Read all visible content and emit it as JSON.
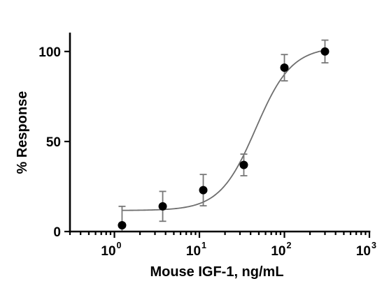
{
  "chart_data": {
    "type": "scatter",
    "xscale": "log",
    "xlabel": "Mouse IGF-1, ng/mL",
    "ylabel": "% Response",
    "xlim": [
      0.3,
      1000
    ],
    "ylim": [
      0,
      110
    ],
    "x_ticks": [
      {
        "value": 1,
        "base": "10",
        "exp": "0"
      },
      {
        "value": 10,
        "base": "10",
        "exp": "1"
      },
      {
        "value": 100,
        "base": "10",
        "exp": "2"
      },
      {
        "value": 1000,
        "base": "10",
        "exp": "3"
      }
    ],
    "y_ticks": [
      {
        "value": 0,
        "label": "0"
      },
      {
        "value": 50,
        "label": "50"
      },
      {
        "value": 100,
        "label": "100"
      }
    ],
    "grid": false,
    "points": [
      {
        "x": 1.23,
        "y": 3.5,
        "err": 10.5
      },
      {
        "x": 3.7,
        "y": 14,
        "err": 8.3
      },
      {
        "x": 11.1,
        "y": 23,
        "err": 8.7
      },
      {
        "x": 33.3,
        "y": 37,
        "err": 6
      },
      {
        "x": 100,
        "y": 91,
        "err": 7.3
      },
      {
        "x": 300,
        "y": 100,
        "err": 6.3
      }
    ],
    "fit": {
      "model": "4PL",
      "bottom": 11.7,
      "top": 102.6,
      "ec50": 46,
      "hill": 2.05
    },
    "colors": {
      "points": "#000000",
      "errorbars": "#777777",
      "curve": "#6e6e6e",
      "axes": "#000000"
    }
  }
}
